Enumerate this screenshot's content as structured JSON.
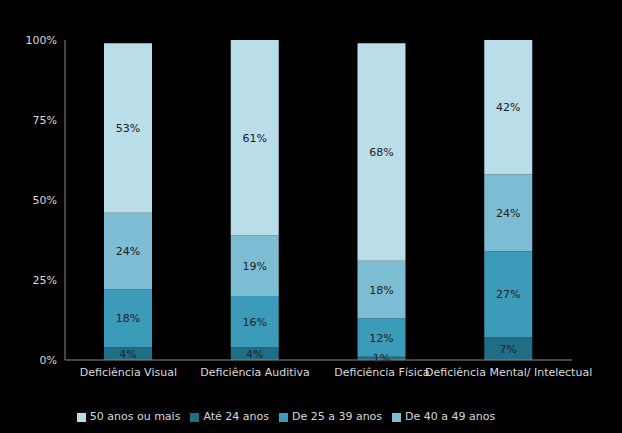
{
  "chart_data": {
    "type": "bar",
    "stacked": true,
    "grid": false,
    "legend": "bottom",
    "data_labels": true,
    "categories": [
      "Deficiência Visual",
      "Deficiência Auditiva",
      "Deficiência Física",
      "Deficiência Mental/ Intelectual"
    ],
    "series": [
      {
        "name": "Até 24 anos",
        "color": "#1f6e86",
        "values": [
          4,
          4,
          1,
          7
        ],
        "value_labels": [
          "4%",
          "4%",
          "1%",
          "7%"
        ]
      },
      {
        "name": "De 25 a 39 anos",
        "color": "#3b9bb9",
        "values": [
          18,
          16,
          12,
          27
        ],
        "value_labels": [
          "18%",
          "16%",
          "12%",
          "27%"
        ]
      },
      {
        "name": "De 40 a 49 anos",
        "color": "#7cbdd4",
        "values": [
          24,
          19,
          18,
          24
        ],
        "value_labels": [
          "24%",
          "19%",
          "18%",
          "24%"
        ]
      },
      {
        "name": "50 anos ou mais",
        "color": "#b9dde9",
        "values": [
          53,
          61,
          68,
          42
        ],
        "value_labels": [
          "53%",
          "61%",
          "68%",
          "42%"
        ]
      }
    ],
    "ylim": [
      0,
      100
    ],
    "yticks": [
      {
        "value": 0,
        "label": "0%"
      },
      {
        "value": 25,
        "label": "25%"
      },
      {
        "value": 50,
        "label": "50%"
      },
      {
        "value": 75,
        "label": "75%"
      },
      {
        "value": 100,
        "label": "100%"
      }
    ]
  }
}
